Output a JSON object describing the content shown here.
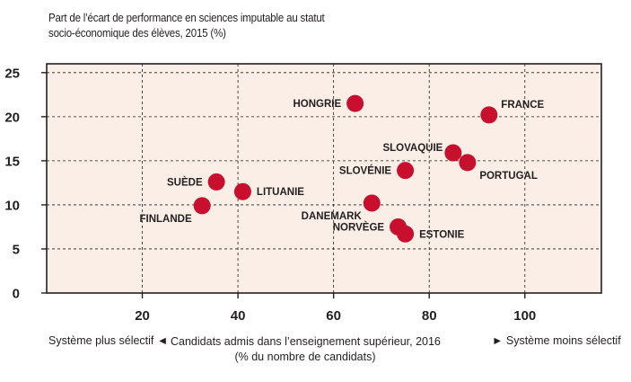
{
  "chart_data": {
    "type": "scatter",
    "title_lines": [
      "Part de l’écart de performance en sciences imputable au statut",
      "socio-économique des élèves, 2015 (%)"
    ],
    "xlabel_lines": [
      "Candidats admis dans l’enseignement supérieur, 2016",
      "(% du nombre de candidats)"
    ],
    "left_note": "Système plus sélectif",
    "right_note": "Système moins sélectif",
    "left_arrow": "◄",
    "right_arrow": "►",
    "xlim": [
      0,
      116
    ],
    "ylim": [
      0,
      26
    ],
    "xticks": [
      20,
      40,
      60,
      80,
      100
    ],
    "yticks": [
      0,
      5,
      10,
      15,
      20,
      25
    ],
    "grid": "horizontal dashed",
    "colors": {
      "point": "#c8102e",
      "background": "#fbeee6",
      "axis": "#231f20"
    },
    "points": [
      {
        "label": "HONGRIE",
        "x": 64.5,
        "y": 21.5,
        "label_pos": "left"
      },
      {
        "label": "FRANCE",
        "x": 92.5,
        "y": 20.2,
        "label_pos": "upper-right"
      },
      {
        "label": "SLOVAQUIE",
        "x": 85.0,
        "y": 15.9,
        "label_pos": "upper-left"
      },
      {
        "label": "PORTUGAL",
        "x": 88.0,
        "y": 14.8,
        "label_pos": "lower-right"
      },
      {
        "label": "SLOVÉNIE",
        "x": 75.0,
        "y": 13.9,
        "label_pos": "left"
      },
      {
        "label": "SUÈDE",
        "x": 35.5,
        "y": 12.6,
        "label_pos": "left"
      },
      {
        "label": "LITUANIE",
        "x": 41.0,
        "y": 11.5,
        "label_pos": "right"
      },
      {
        "label": "DANEMARK",
        "x": 68.0,
        "y": 10.2,
        "label_pos": "lower-left"
      },
      {
        "label": "FINLANDE",
        "x": 32.5,
        "y": 9.9,
        "label_pos": "lower-left"
      },
      {
        "label": "NORVÈGE",
        "x": 73.5,
        "y": 7.5,
        "label_pos": "left"
      },
      {
        "label": "ESTONIE",
        "x": 75.0,
        "y": 6.7,
        "label_pos": "right"
      }
    ]
  }
}
